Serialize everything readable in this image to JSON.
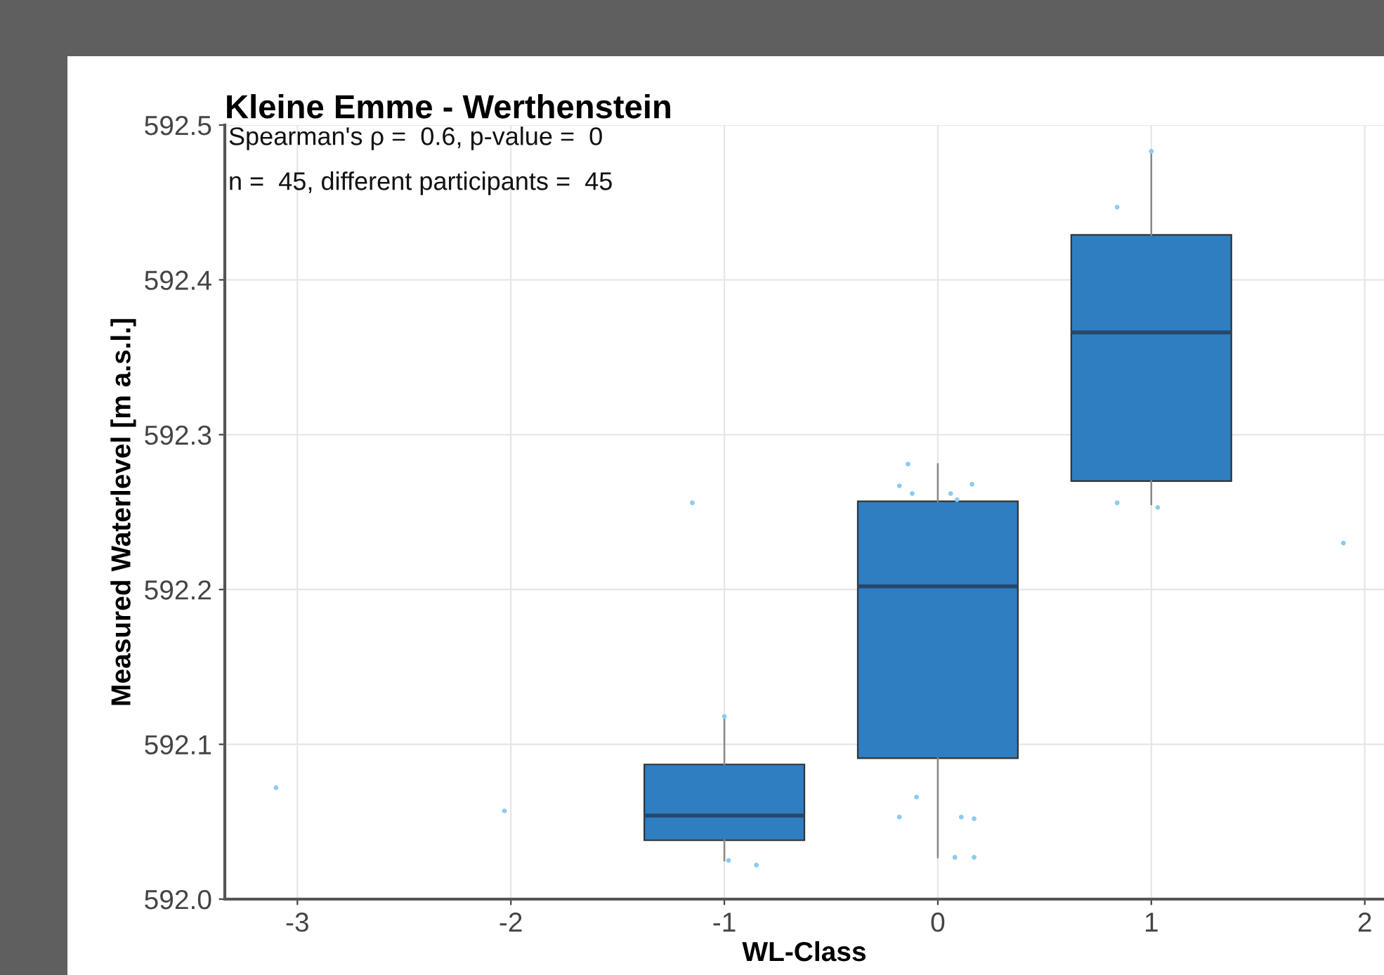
{
  "chart_data": {
    "type": "box",
    "title": "Kleine Emme - Werthenstein",
    "xlabel": "WL-Class",
    "ylabel": "Measured Waterlevel [m a.s.l.]",
    "annotations": [
      "Spearman's ρ =  0.6, p-value =  0",
      "n =  45, different participants =  45"
    ],
    "x": [
      -1,
      0,
      1
    ],
    "color": "#2e7ec1",
    "boxes": [
      {
        "low": 592.025,
        "q1": 592.038,
        "median": 592.054,
        "q3": 592.087,
        "high": 592.118
      },
      {
        "low": 592.027,
        "q1": 592.091,
        "median": 592.202,
        "q3": 592.257,
        "high": 592.281
      },
      {
        "low": 592.255,
        "q1": 592.27,
        "median": 592.366,
        "q3": 592.429,
        "high": 592.484
      }
    ],
    "series": [
      {
        "type": "scatter",
        "color": "#8ccbf2",
        "x": [
          -3.1,
          -2.03,
          -1.15,
          -1.0,
          -0.98,
          -0.85,
          -0.14,
          -0.18,
          -0.12,
          0.06,
          0.16,
          0.09,
          -0.1,
          -0.18,
          0.11,
          0.17,
          0.08,
          0.17,
          0.84,
          1.0,
          0.84,
          1.03,
          1.9
        ],
        "values": [
          592.072,
          592.057,
          592.256,
          592.118,
          592.025,
          592.022,
          592.281,
          592.267,
          592.262,
          592.262,
          592.268,
          592.258,
          592.066,
          592.053,
          592.053,
          592.052,
          592.027,
          592.027,
          592.447,
          592.483,
          592.256,
          592.253,
          592.23
        ]
      }
    ],
    "xlim": [
      -3.34,
      2.09
    ],
    "ylim": [
      592.0,
      592.5
    ],
    "xticks": [
      -3,
      -2,
      -1,
      0,
      1,
      2
    ],
    "yticks": [
      {
        "value": 592.0,
        "label": "592.0"
      },
      {
        "value": 592.1,
        "label": "592.1"
      },
      {
        "value": 592.2,
        "label": "592.2"
      },
      {
        "value": 592.3,
        "label": "592.3"
      },
      {
        "value": 592.4,
        "label": "592.4"
      },
      {
        "value": 592.5,
        "label": "592.5"
      }
    ],
    "grid": true
  }
}
